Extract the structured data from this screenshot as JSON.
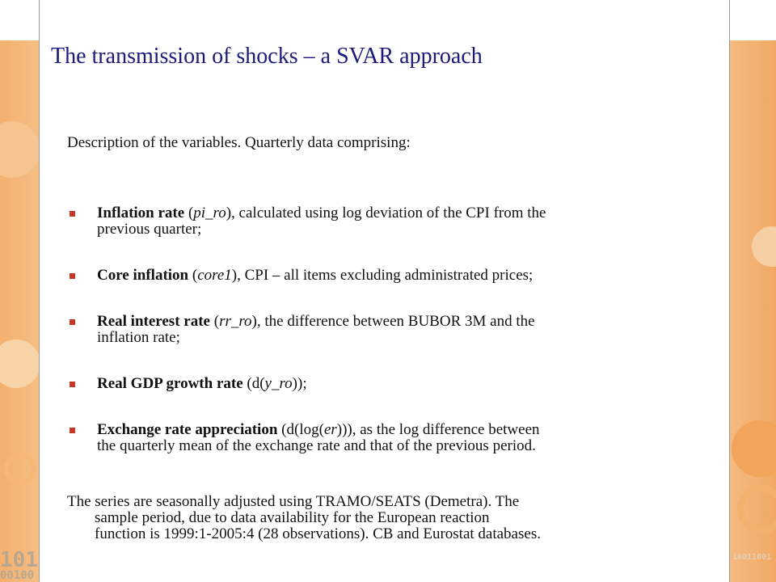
{
  "slide": {
    "title": "The transmission of shocks – a SVAR approach",
    "intro": "Description of the variables. Quarterly data comprising:",
    "bullets": [
      {
        "term": "Inflation rate",
        "open": " (",
        "var": "pi_ro",
        "close": "), calculated using log deviation of the CPI from the",
        "cont": "previous quarter;"
      },
      {
        "term": "Core inflation",
        "open": " (",
        "var": "core1",
        "close": "), CPI – all items excluding administrated prices;",
        "cont": ""
      },
      {
        "term": "Real interest rate",
        "open": " (",
        "var": "rr_ro",
        "close": "), the difference between BUBOR 3M and the",
        "cont": "inflation rate;"
      },
      {
        "term": "Real GDP growth rate",
        "open": " (d(",
        "var": "y_ro",
        "close": "));",
        "cont": ""
      },
      {
        "term": "Exchange rate appreciation",
        "open": " (d(log(",
        "var": "er",
        "close": "))), as the log difference between",
        "cont": "the quarterly mean of the exchange rate and that of the previous period."
      }
    ],
    "outro_lines": [
      "The series are seasonally adjusted using TRAMO/SEATS (Demetra). The",
      "sample period, due to data availability for the European reaction",
      "function is 1999:1-2005:4 (28 observations). CB and Eurostat databases."
    ]
  },
  "decor": {
    "left_binary": "101",
    "left_binary_2": "00100",
    "right_binary": "10011001"
  },
  "colors": {
    "title": "#1a1a7a",
    "bullet": "#c8362a",
    "accent_orange": "#f29b3c"
  }
}
